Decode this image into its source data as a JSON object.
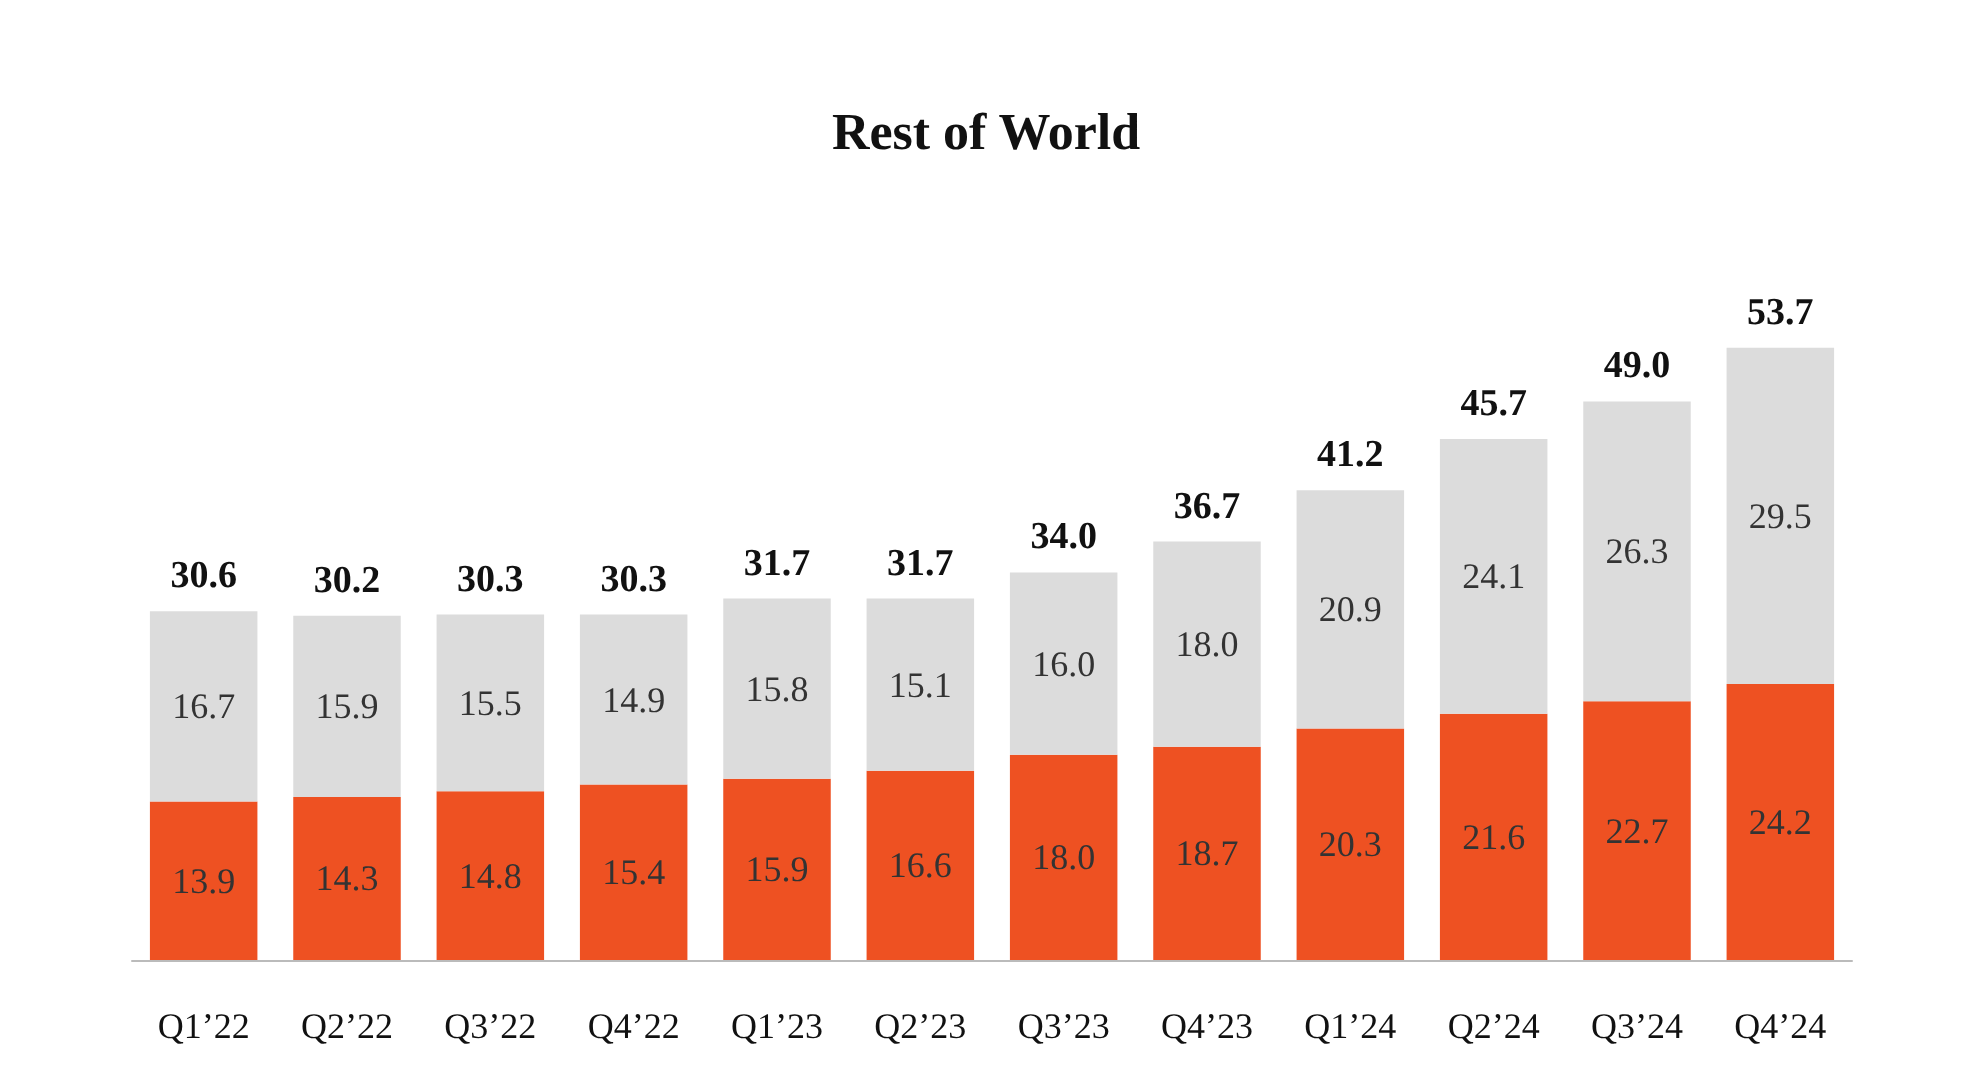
{
  "chart_data": {
    "type": "bar",
    "title": "Rest of World",
    "stacked": true,
    "categories": [
      "Q1’22",
      "Q2’22",
      "Q3’22",
      "Q4’22",
      "Q1’23",
      "Q2’23",
      "Q3’23",
      "Q4’23",
      "Q1’24",
      "Q2’24",
      "Q3’24",
      "Q4’24"
    ],
    "series": [
      {
        "color": "#ee5122",
        "values": [
          13.9,
          14.3,
          14.8,
          15.4,
          15.9,
          16.6,
          18.0,
          18.7,
          20.3,
          21.6,
          22.7,
          24.2
        ],
        "value_labels": [
          "13.9",
          "14.3",
          "14.8",
          "15.4",
          "15.9",
          "16.6",
          "18.0",
          "18.7",
          "20.3",
          "21.6",
          "22.7",
          "24.2"
        ]
      },
      {
        "color": "#dcdcdc",
        "values": [
          16.7,
          15.9,
          15.5,
          14.9,
          15.8,
          15.1,
          16.0,
          18.0,
          20.9,
          24.1,
          26.3,
          29.5
        ],
        "value_labels": [
          "16.7",
          "15.9",
          "15.5",
          "14.9",
          "15.8",
          "15.1",
          "16.0",
          "18.0",
          "20.9",
          "24.1",
          "26.3",
          "29.5"
        ]
      }
    ],
    "totals": [
      "30.6",
      "30.2",
      "30.3",
      "30.3",
      "31.7",
      "31.7",
      "34.0",
      "36.7",
      "41.2",
      "45.7",
      "49.0",
      "53.7"
    ]
  }
}
